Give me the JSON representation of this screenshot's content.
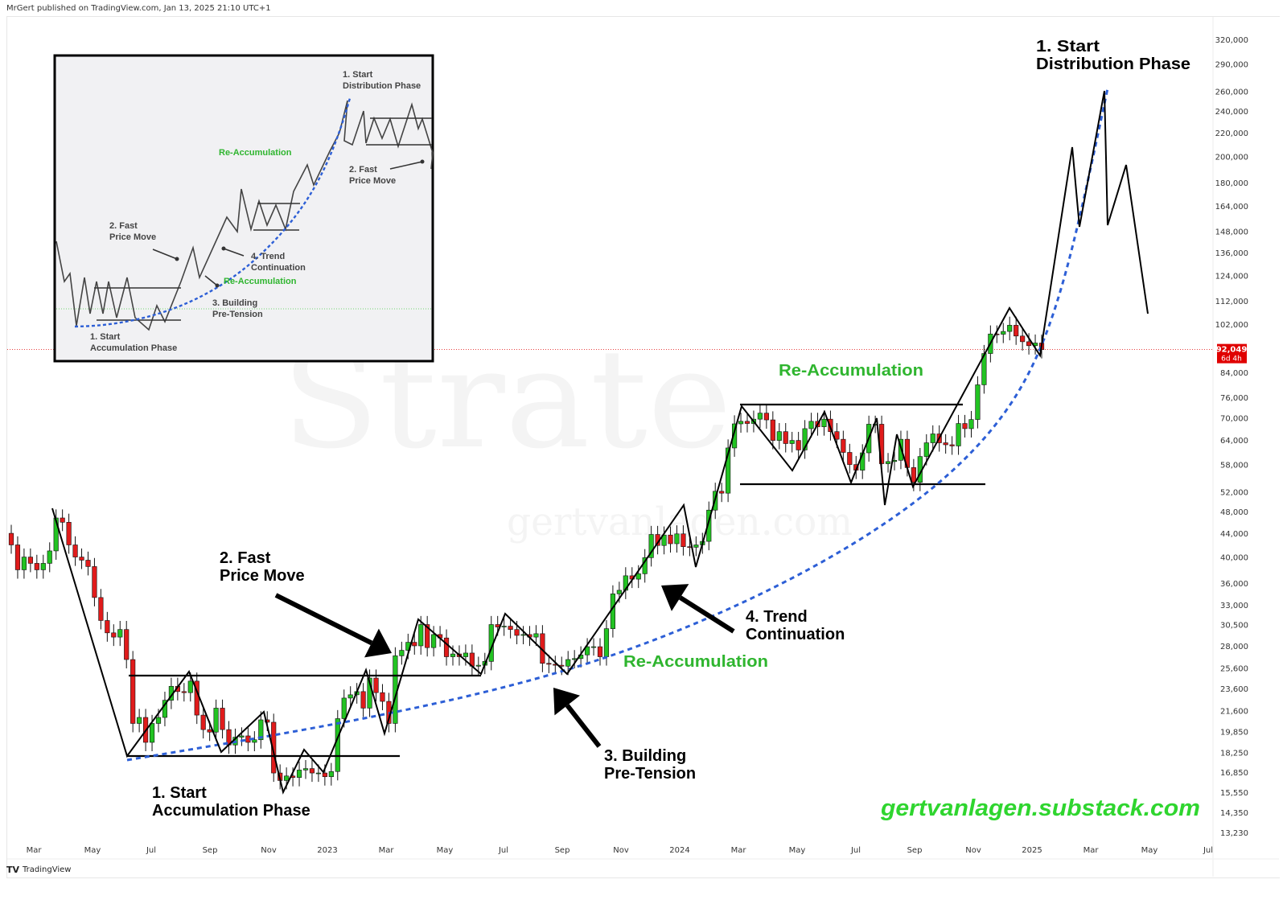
{
  "header": {
    "published": "MrGert published on TradingView.com, Jan 13, 2025 21:10 UTC+1"
  },
  "footer": {
    "brand": "TradingView",
    "logo": "TV"
  },
  "colors": {
    "up": "#22c322",
    "down": "#e01b1b",
    "curve": "#2d5fd6",
    "green_text": "#2fb52f",
    "price_label": "#e00000"
  },
  "chart_data": {
    "type": "candlestick",
    "title": "",
    "scale": "log",
    "ylim": [
      12500,
      345000
    ],
    "y_ticks": [
      "320,000",
      "290,000",
      "260,000",
      "240,000",
      "220,000",
      "200,000",
      "180,000",
      "164,000",
      "148,000",
      "136,000",
      "124,000",
      "112,000",
      "102,000",
      "84,000",
      "76,000",
      "70,000",
      "64,000",
      "58,000",
      "52,000",
      "48,000",
      "44,000",
      "40,000",
      "36,000",
      "33,000",
      "30,500",
      "28,000",
      "25,600",
      "23,600",
      "21,600",
      "19,850",
      "18,250",
      "16,850",
      "15,550",
      "14,350",
      "13,230"
    ],
    "x_ticks": [
      "Mar",
      "May",
      "Jul",
      "Sep",
      "Nov",
      "2023",
      "Mar",
      "May",
      "Jul",
      "Sep",
      "Nov",
      "2024",
      "Mar",
      "May",
      "Jul",
      "Sep",
      "Nov",
      "2025",
      "Mar",
      "May",
      "Jul"
    ],
    "first_open": 44000,
    "weekly_closes": [
      42000,
      38000,
      40000,
      39000,
      38000,
      39000,
      41000,
      46800,
      46000,
      42000,
      40000,
      39500,
      38500,
      34000,
      31000,
      29500,
      29000,
      29900,
      26500,
      20500,
      21000,
      19000,
      20500,
      21000,
      22500,
      23800,
      23300,
      23200,
      24300,
      21200,
      20000,
      19800,
      21800,
      20000,
      18800,
      19400,
      19500,
      19000,
      19200,
      20800,
      20600,
      16800,
      16300,
      16600,
      16500,
      17000,
      17100,
      16800,
      16800,
      16550,
      16900,
      20900,
      22700,
      23000,
      23300,
      21800,
      24600,
      23200,
      22400,
      20500,
      26900,
      27500,
      28400,
      28000,
      30500,
      27800,
      29300,
      28900,
      26800,
      27100,
      26800,
      27200,
      25800,
      25900,
      26300,
      30500,
      30200,
      30300,
      29900,
      29200,
      29300,
      29000,
      29400,
      26100,
      26000,
      25900,
      25800,
      26500,
      26600,
      27000,
      27900,
      27900,
      26800,
      30000,
      34500,
      35000,
      37100,
      36600,
      37400,
      39900,
      43800,
      41900,
      43700,
      42200,
      43900,
      41700,
      41600,
      42000,
      42600,
      48300,
      52100,
      51700,
      62000,
      68300,
      69000,
      68400,
      69600,
      71300,
      69400,
      63900,
      66200,
      63100,
      63900,
      61500,
      67000,
      69000,
      67500,
      69600,
      66200,
      64200,
      60900,
      58000,
      56700,
      60800,
      68200,
      68200,
      58200,
      58700,
      59000,
      64200,
      57300,
      54000,
      59900,
      63300,
      65600,
      63300,
      62800,
      62500,
      68400,
      67000,
      69500,
      79900,
      90600,
      98000,
      97900,
      99000,
      101500,
      97200,
      95000,
      93500,
      94500,
      92049
    ],
    "last_price": {
      "value": "92,049",
      "countdown": "6d 4h"
    },
    "annotations": {
      "distribution": [
        "1. Start",
        "Distribution Phase"
      ],
      "fast_move": [
        "2. Fast",
        "Price Move"
      ],
      "trend": [
        "4. Trend",
        "Continuation"
      ],
      "building": [
        "3. Building",
        "Pre-Tension"
      ],
      "accumulation": [
        "1. Start",
        "Accumulation Phase"
      ],
      "reacc_1": "Re-Accumulation",
      "reacc_2": "Re-Accumulation",
      "substack": "gertvanlagen.substack.com",
      "watermark_1": "Strate",
      "watermark_2": "gertvanlagen.com"
    },
    "inset": {
      "distribution": [
        "1. Start",
        "Distribution Phase"
      ],
      "reacc_top": "Re-Accumulation",
      "fast_move_right": [
        "2. Fast",
        "Price Move"
      ],
      "fast_move_left": [
        "2. Fast",
        "Price Move"
      ],
      "trend": [
        "4. Trend",
        "Continuation"
      ],
      "reacc_mid": "Re-Accumulation",
      "building": [
        "3. Building",
        "Pre-Tension"
      ],
      "accumulation": [
        "1. Start",
        "Accumulation Phase"
      ]
    }
  }
}
